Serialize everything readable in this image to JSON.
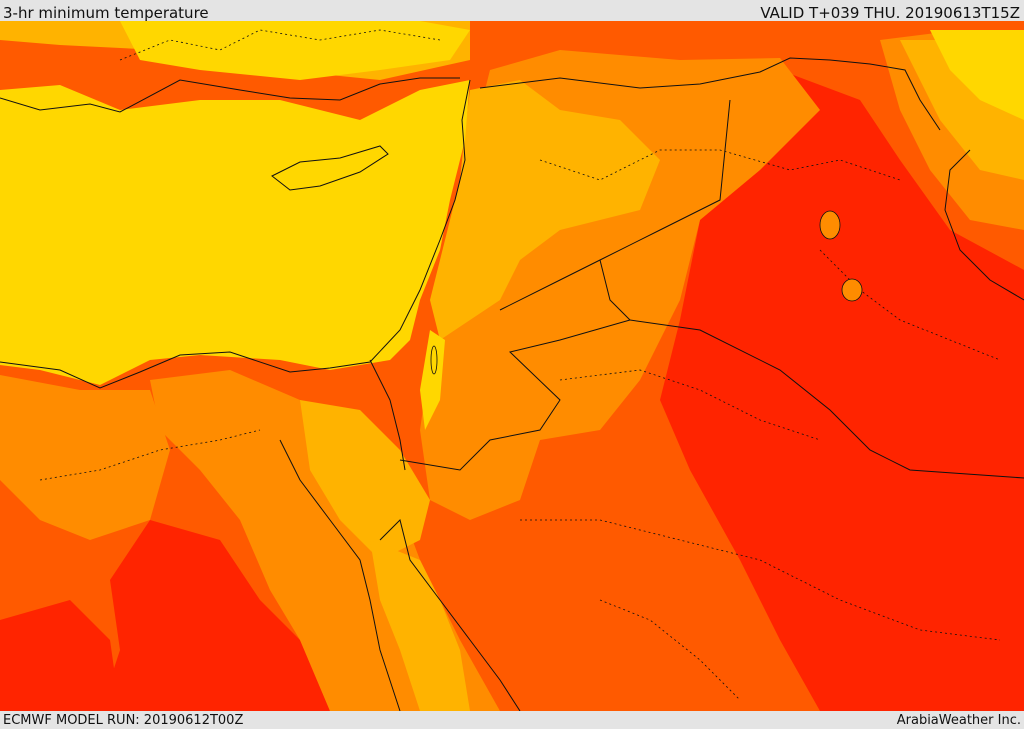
{
  "header": {
    "title": "3-hr minimum temperature",
    "valid": "VALID T+039 THU. 20190613T15Z"
  },
  "footer": {
    "model_run": "ECMWF MODEL RUN: 20190612T00Z",
    "credit": "ArabiaWeather Inc."
  },
  "palette": {
    "yellow": "#ffd700",
    "light_orange": "#ffb300",
    "orange": "#ff8c00",
    "red_orange": "#ff5a00",
    "red": "#ff2400",
    "border": "#111111"
  }
}
